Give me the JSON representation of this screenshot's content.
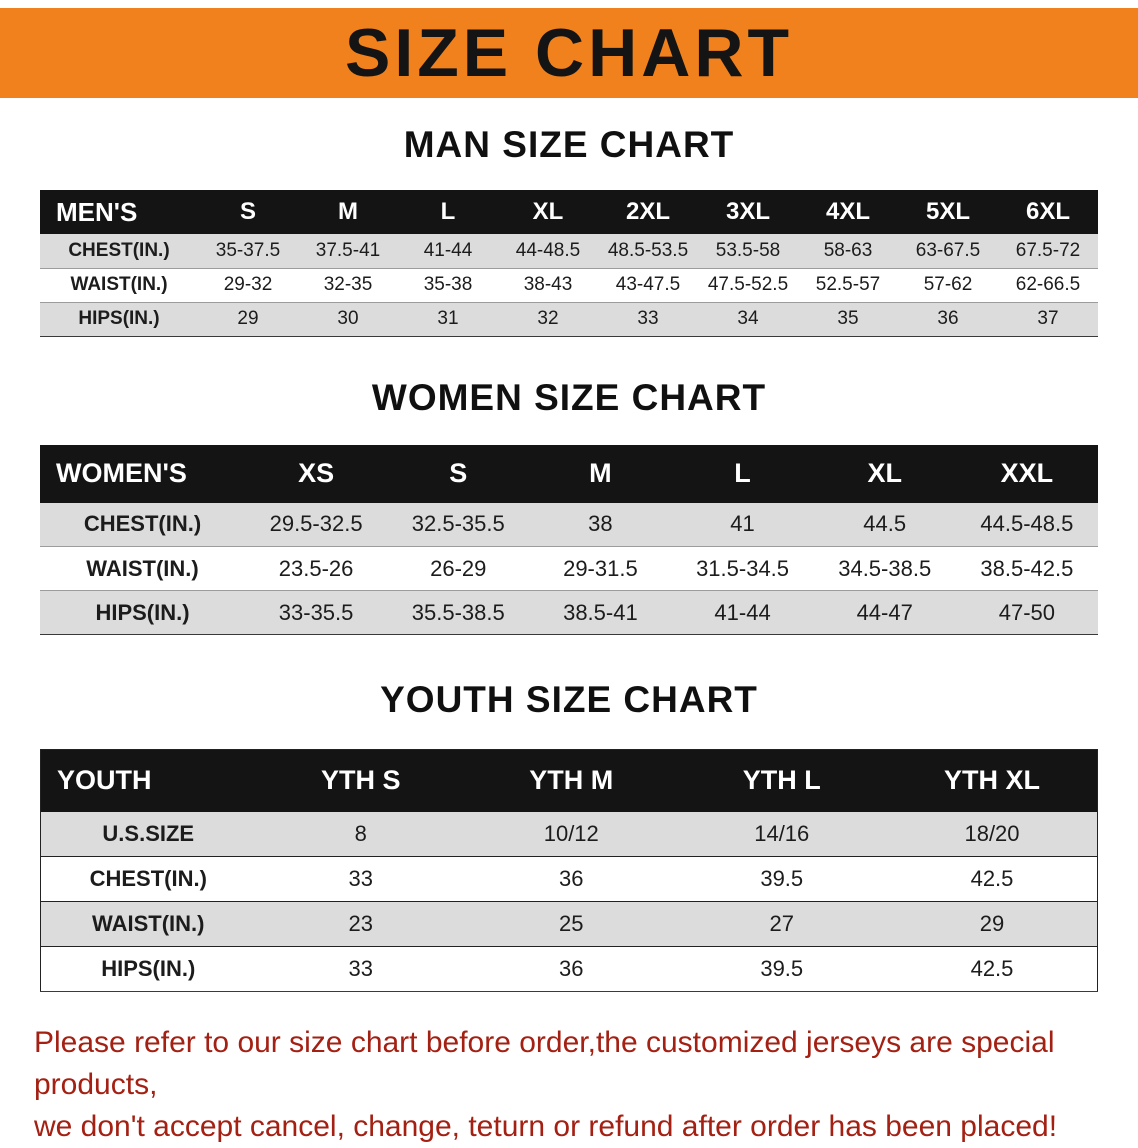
{
  "banner": {
    "title": "SIZE CHART"
  },
  "colors": {
    "banner_bg": "#F0811D",
    "header_bar": "#141414",
    "row_stripe": "#DCDCDC",
    "note_red": "#A32013"
  },
  "sections": [
    {
      "title": "MAN SIZE CHART",
      "label": "MEN'S",
      "columns": [
        "S",
        "M",
        "L",
        "XL",
        "2XL",
        "3XL",
        "4XL",
        "5XL",
        "6XL"
      ],
      "rows": [
        {
          "label": "CHEST(IN.)",
          "values": [
            "35-37.5",
            "37.5-41",
            "41-44",
            "44-48.5",
            "48.5-53.5",
            "53.5-58",
            "58-63",
            "63-67.5",
            "67.5-72"
          ]
        },
        {
          "label": "WAIST(IN.)",
          "values": [
            "29-32",
            "32-35",
            "35-38",
            "38-43",
            "43-47.5",
            "47.5-52.5",
            "52.5-57",
            "57-62",
            "62-66.5"
          ]
        },
        {
          "label": "HIPS(IN.)",
          "values": [
            "29",
            "30",
            "31",
            "32",
            "33",
            "34",
            "35",
            "36",
            "37"
          ]
        }
      ]
    },
    {
      "title": "WOMEN SIZE CHART",
      "label": "WOMEN'S",
      "columns": [
        "XS",
        "S",
        "M",
        "L",
        "XL",
        "XXL"
      ],
      "rows": [
        {
          "label": "CHEST(IN.)",
          "values": [
            "29.5-32.5",
            "32.5-35.5",
            "38",
            "41",
            "44.5",
            "44.5-48.5"
          ]
        },
        {
          "label": "WAIST(IN.)",
          "values": [
            "23.5-26",
            "26-29",
            "29-31.5",
            "31.5-34.5",
            "34.5-38.5",
            "38.5-42.5"
          ]
        },
        {
          "label": "HIPS(IN.)",
          "values": [
            "33-35.5",
            "35.5-38.5",
            "38.5-41",
            "41-44",
            "44-47",
            "47-50"
          ]
        }
      ]
    },
    {
      "title": "YOUTH SIZE CHART",
      "label": "YOUTH",
      "columns": [
        "YTH S",
        "YTH M",
        "YTH L",
        "YTH XL"
      ],
      "rows": [
        {
          "label": "U.S.SIZE",
          "values": [
            "8",
            "10/12",
            "14/16",
            "18/20"
          ]
        },
        {
          "label": "CHEST(IN.)",
          "values": [
            "33",
            "36",
            "39.5",
            "42.5"
          ]
        },
        {
          "label": "WAIST(IN.)",
          "values": [
            "23",
            "25",
            "27",
            "29"
          ]
        },
        {
          "label": "HIPS(IN.)",
          "values": [
            "33",
            "36",
            "39.5",
            "42.5"
          ]
        }
      ]
    }
  ],
  "footer": {
    "line1": "Please refer to our size chart before order,the customized jerseys are special products,",
    "line2": "we don't accept cancel, change, teturn or refund after order has been placed!"
  }
}
